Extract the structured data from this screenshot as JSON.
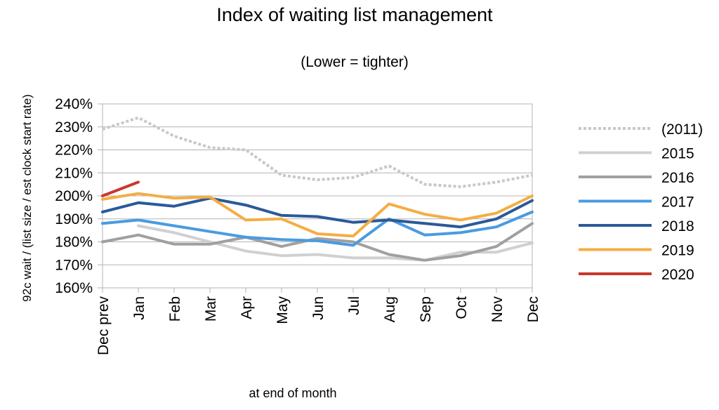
{
  "chart_data": {
    "type": "line",
    "title": "Index of waiting list management",
    "subtitle": "(Lower = tighter)",
    "xlabel": "at end of month",
    "ylabel": "92c wait / (list size / est clock start rate)",
    "categories": [
      "Dec prev",
      "Jan",
      "Feb",
      "Mar",
      "Apr",
      "May",
      "Jun",
      "Jul",
      "Aug",
      "Sep",
      "Oct",
      "Nov",
      "Dec"
    ],
    "ylim": [
      1.6,
      2.4
    ],
    "yticks": [
      "160%",
      "170%",
      "180%",
      "190%",
      "200%",
      "210%",
      "220%",
      "230%",
      "240%"
    ],
    "grid": "horizontal",
    "legend_position": "right",
    "series": [
      {
        "name": "(2011)",
        "color": "#c8c8c8",
        "style": "dotted",
        "values": [
          2.29,
          2.34,
          2.26,
          2.21,
          2.2,
          2.09,
          2.07,
          2.08,
          2.13,
          2.05,
          2.04,
          2.06,
          2.09
        ]
      },
      {
        "name": "2015",
        "color": "#d0d0d0",
        "style": "solid",
        "values": [
          null,
          1.87,
          1.84,
          1.8,
          1.76,
          1.74,
          1.745,
          1.73,
          1.73,
          1.72,
          1.755,
          1.755,
          1.795
        ]
      },
      {
        "name": "2016",
        "color": "#a0a0a0",
        "style": "solid",
        "values": [
          1.8,
          1.83,
          1.79,
          1.79,
          1.82,
          1.78,
          1.815,
          1.8,
          1.745,
          1.72,
          1.74,
          1.78,
          1.88
        ]
      },
      {
        "name": "2017",
        "color": "#4a9be0",
        "style": "solid",
        "values": [
          1.88,
          1.895,
          1.87,
          1.845,
          1.82,
          1.81,
          1.805,
          1.785,
          1.9,
          1.83,
          1.84,
          1.865,
          1.93
        ]
      },
      {
        "name": "2018",
        "color": "#2a5a99",
        "style": "solid",
        "values": [
          1.93,
          1.97,
          1.955,
          1.99,
          1.96,
          1.915,
          1.91,
          1.885,
          1.895,
          1.88,
          1.865,
          1.9,
          1.98
        ]
      },
      {
        "name": "2019",
        "color": "#f4ad45",
        "style": "solid",
        "values": [
          1.985,
          2.01,
          1.99,
          1.995,
          1.895,
          1.9,
          1.835,
          1.825,
          1.965,
          1.92,
          1.895,
          1.925,
          2.0
        ]
      },
      {
        "name": "2020",
        "color": "#c8392b",
        "style": "solid",
        "values": [
          2.0,
          2.06,
          null,
          null,
          null,
          null,
          null,
          null,
          null,
          null,
          null,
          null,
          null
        ]
      }
    ]
  }
}
